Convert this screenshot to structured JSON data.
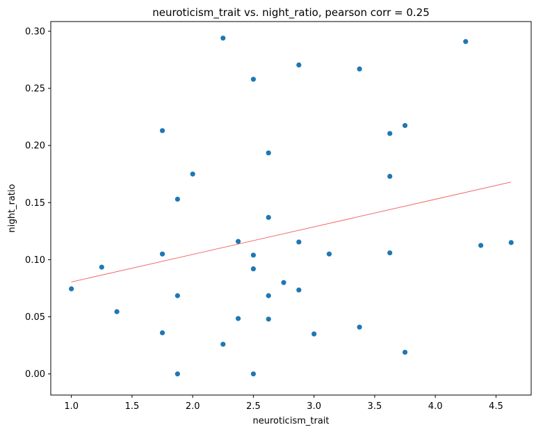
{
  "chart_data": {
    "type": "scatter",
    "title": "neuroticism_trait vs. night_ratio, pearson corr = 0.25",
    "xlabel": "neuroticism_trait",
    "ylabel": "night_ratio",
    "xlim": [
      0.83,
      4.79
    ],
    "ylim": [
      -0.0185,
      0.3085
    ],
    "xticks": [
      "1.0",
      "1.5",
      "2.0",
      "2.5",
      "3.0",
      "3.5",
      "4.0",
      "4.5"
    ],
    "yticks": [
      "0.00",
      "0.05",
      "0.10",
      "0.15",
      "0.20",
      "0.25",
      "0.30"
    ],
    "grid": false,
    "point_color": "#1f77b4",
    "trend_color": "#f15a5a",
    "points": [
      {
        "x": 1.0,
        "y": 0.0745
      },
      {
        "x": 1.25,
        "y": 0.0935
      },
      {
        "x": 1.375,
        "y": 0.0545
      },
      {
        "x": 1.75,
        "y": 0.213
      },
      {
        "x": 1.75,
        "y": 0.105
      },
      {
        "x": 1.75,
        "y": 0.036
      },
      {
        "x": 1.875,
        "y": 0.153
      },
      {
        "x": 1.875,
        "y": 0.0685
      },
      {
        "x": 1.875,
        "y": 0.0
      },
      {
        "x": 2.0,
        "y": 0.175
      },
      {
        "x": 2.25,
        "y": 0.294
      },
      {
        "x": 2.25,
        "y": 0.026
      },
      {
        "x": 2.375,
        "y": 0.116
      },
      {
        "x": 2.375,
        "y": 0.0485
      },
      {
        "x": 2.5,
        "y": 0.258
      },
      {
        "x": 2.5,
        "y": 0.104
      },
      {
        "x": 2.5,
        "y": 0.092
      },
      {
        "x": 2.5,
        "y": 0.0
      },
      {
        "x": 2.625,
        "y": 0.1935
      },
      {
        "x": 2.625,
        "y": 0.137
      },
      {
        "x": 2.625,
        "y": 0.0685
      },
      {
        "x": 2.625,
        "y": 0.048
      },
      {
        "x": 2.75,
        "y": 0.08
      },
      {
        "x": 2.875,
        "y": 0.2705
      },
      {
        "x": 2.875,
        "y": 0.1155
      },
      {
        "x": 2.875,
        "y": 0.0735
      },
      {
        "x": 3.0,
        "y": 0.035
      },
      {
        "x": 3.125,
        "y": 0.105
      },
      {
        "x": 3.375,
        "y": 0.267
      },
      {
        "x": 3.375,
        "y": 0.041
      },
      {
        "x": 3.625,
        "y": 0.2105
      },
      {
        "x": 3.625,
        "y": 0.173
      },
      {
        "x": 3.625,
        "y": 0.106
      },
      {
        "x": 3.75,
        "y": 0.2175
      },
      {
        "x": 3.75,
        "y": 0.019
      },
      {
        "x": 4.25,
        "y": 0.291
      },
      {
        "x": 4.375,
        "y": 0.1125
      },
      {
        "x": 4.625,
        "y": 0.115
      }
    ],
    "trendline": {
      "x": [
        1.0,
        4.625
      ],
      "y": [
        0.0805,
        0.168
      ]
    }
  }
}
